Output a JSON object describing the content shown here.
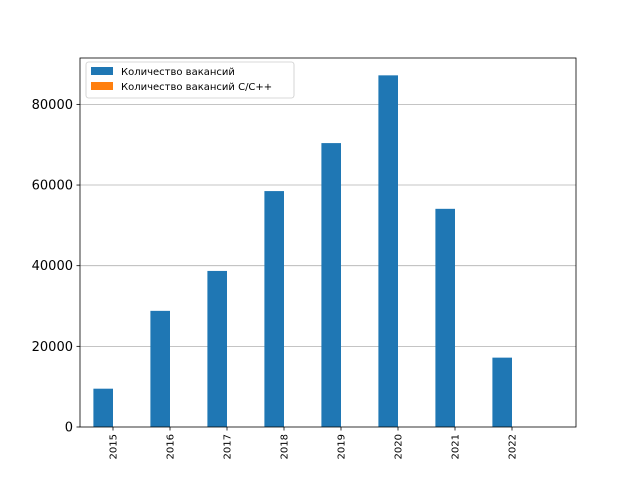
{
  "chart_data": {
    "type": "bar",
    "categories": [
      "2015",
      "2016",
      "2017",
      "2018",
      "2019",
      "2020",
      "2021",
      "2022"
    ],
    "series": [
      {
        "name": "Количество вакансий",
        "color": "#1f77b4",
        "values": [
          9500,
          28800,
          38700,
          58500,
          70400,
          87200,
          54100,
          17200
        ]
      },
      {
        "name": "Количество вакансий С/С++",
        "color": "#ff7f0e",
        "values": [
          0,
          0,
          0,
          0,
          0,
          0,
          0,
          0
        ]
      }
    ],
    "ylim": [
      0,
      91500
    ],
    "yticks": [
      0,
      20000,
      40000,
      60000,
      80000
    ],
    "ytick_labels": [
      "0",
      "20000",
      "40000",
      "60000",
      "80000"
    ],
    "grid": "y",
    "legend_position": "top-left",
    "xtick_rotation": "vertical"
  }
}
